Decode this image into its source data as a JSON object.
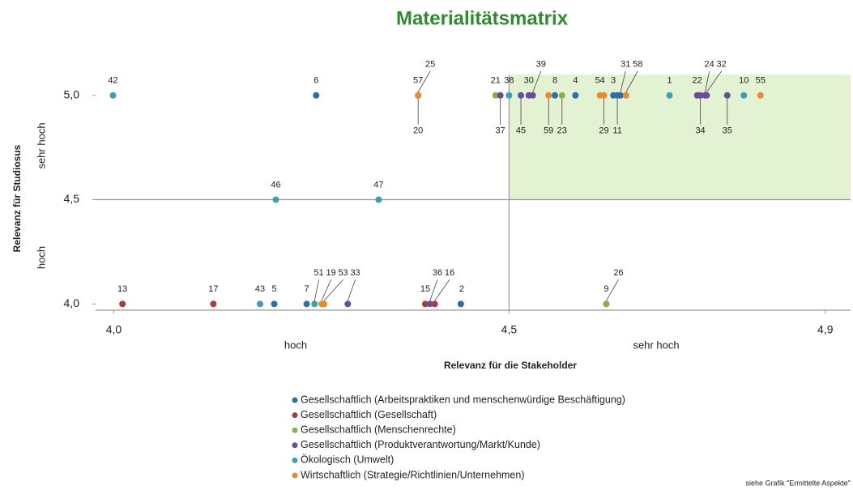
{
  "chart_data": {
    "type": "scatter",
    "title": "Materialitätsmatrix",
    "xlabel": "Relevanz für die Stakeholder",
    "ylabel": "Relevanz für Studiosus",
    "x_level_labels": [
      "hoch",
      "sehr hoch"
    ],
    "y_level_labels": [
      "hoch",
      "sehr hoch"
    ],
    "note": "siehe Grafik  \"Ermittelte  Aspekte\"",
    "xlim": [
      3.977,
      4.932
    ],
    "ylim": [
      3.97,
      5.1
    ],
    "xticks": [
      {
        "value": 4.0,
        "label": "4,0"
      },
      {
        "value": 4.5,
        "label": "4,5"
      },
      {
        "value": 4.9,
        "label": "4,9"
      }
    ],
    "yticks": [
      {
        "value": 4.0,
        "label": "4,0"
      },
      {
        "value": 4.5,
        "label": "4,5"
      },
      {
        "value": 5.0,
        "label": "5,0"
      }
    ],
    "reference_lines": {
      "x": 4.5,
      "y": 4.5
    },
    "highlight_color": "#e2f2d2",
    "legend": "bottom",
    "series": [
      {
        "name": "Gesellschaftlich (Arbeitspraktiken und menschenwürdige Beschäftigung)",
        "color": "#2f6ea8",
        "labels": [
          "6",
          "4",
          "8",
          "3",
          "11",
          "31",
          "5",
          "7",
          "2"
        ],
        "x": [
          4.256,
          4.584,
          4.558,
          4.632,
          4.637,
          4.641,
          4.203,
          4.244,
          4.439
        ],
        "y": [
          5.0,
          5.0,
          5.0,
          5.0,
          5.0,
          5.0,
          4.0,
          4.0,
          4.0
        ]
      },
      {
        "name": "Gesellschaftlich (Gesellschaft)",
        "color": "#b03a3a",
        "labels": [
          "13",
          "17",
          "15",
          "16"
        ],
        "x": [
          4.011,
          4.126,
          4.394,
          4.406
        ],
        "y": [
          4.0,
          4.0,
          4.0,
          4.0
        ]
      },
      {
        "name": "Gesellschaftlich (Menschenrechte)",
        "color": "#8ab04a",
        "labels": [
          "21",
          "23",
          "9",
          "26"
        ],
        "x": [
          4.483,
          4.567,
          4.623,
          4.623
        ],
        "y": [
          5.0,
          5.0,
          4.0,
          4.0
        ]
      },
      {
        "name": "Gesellschaftlich (Produktverantwortung/Markt/Kunde)",
        "color": "#6a4c9c",
        "labels": [
          "37",
          "45",
          "30",
          "39",
          "22",
          "34",
          "24",
          "32",
          "35",
          "33",
          "36"
        ],
        "x": [
          4.489,
          4.515,
          4.525,
          4.53,
          4.738,
          4.742,
          4.748,
          4.75,
          4.776,
          4.296,
          4.4
        ],
        "y": [
          5.0,
          5.0,
          5.0,
          5.0,
          5.0,
          5.0,
          5.0,
          5.0,
          5.0,
          4.0,
          4.0
        ]
      },
      {
        "name": "Ökologisch (Umwelt)",
        "color": "#3aa0b5",
        "labels": [
          "42",
          "38",
          "1",
          "10",
          "46",
          "47",
          "43",
          "51"
        ],
        "x": [
          3.999,
          4.5,
          4.703,
          4.797,
          4.205,
          4.335,
          4.185,
          4.254
        ],
        "y": [
          5.0,
          5.0,
          5.0,
          5.0,
          4.5,
          4.5,
          4.0,
          4.0
        ]
      },
      {
        "name": "Wirtschaftlich (Strategie/Richtlinien/Unternehmen)",
        "color": "#e88a2e",
        "labels": [
          "57",
          "20",
          "25",
          "59",
          "54",
          "29",
          "58",
          "55",
          "19",
          "53"
        ],
        "x": [
          4.385,
          4.385,
          4.385,
          4.55,
          4.615,
          4.62,
          4.648,
          4.818,
          4.263,
          4.266
        ],
        "y": [
          5.0,
          5.0,
          5.0,
          5.0,
          5.0,
          5.0,
          5.0,
          5.0,
          4.0,
          4.0
        ]
      }
    ]
  }
}
